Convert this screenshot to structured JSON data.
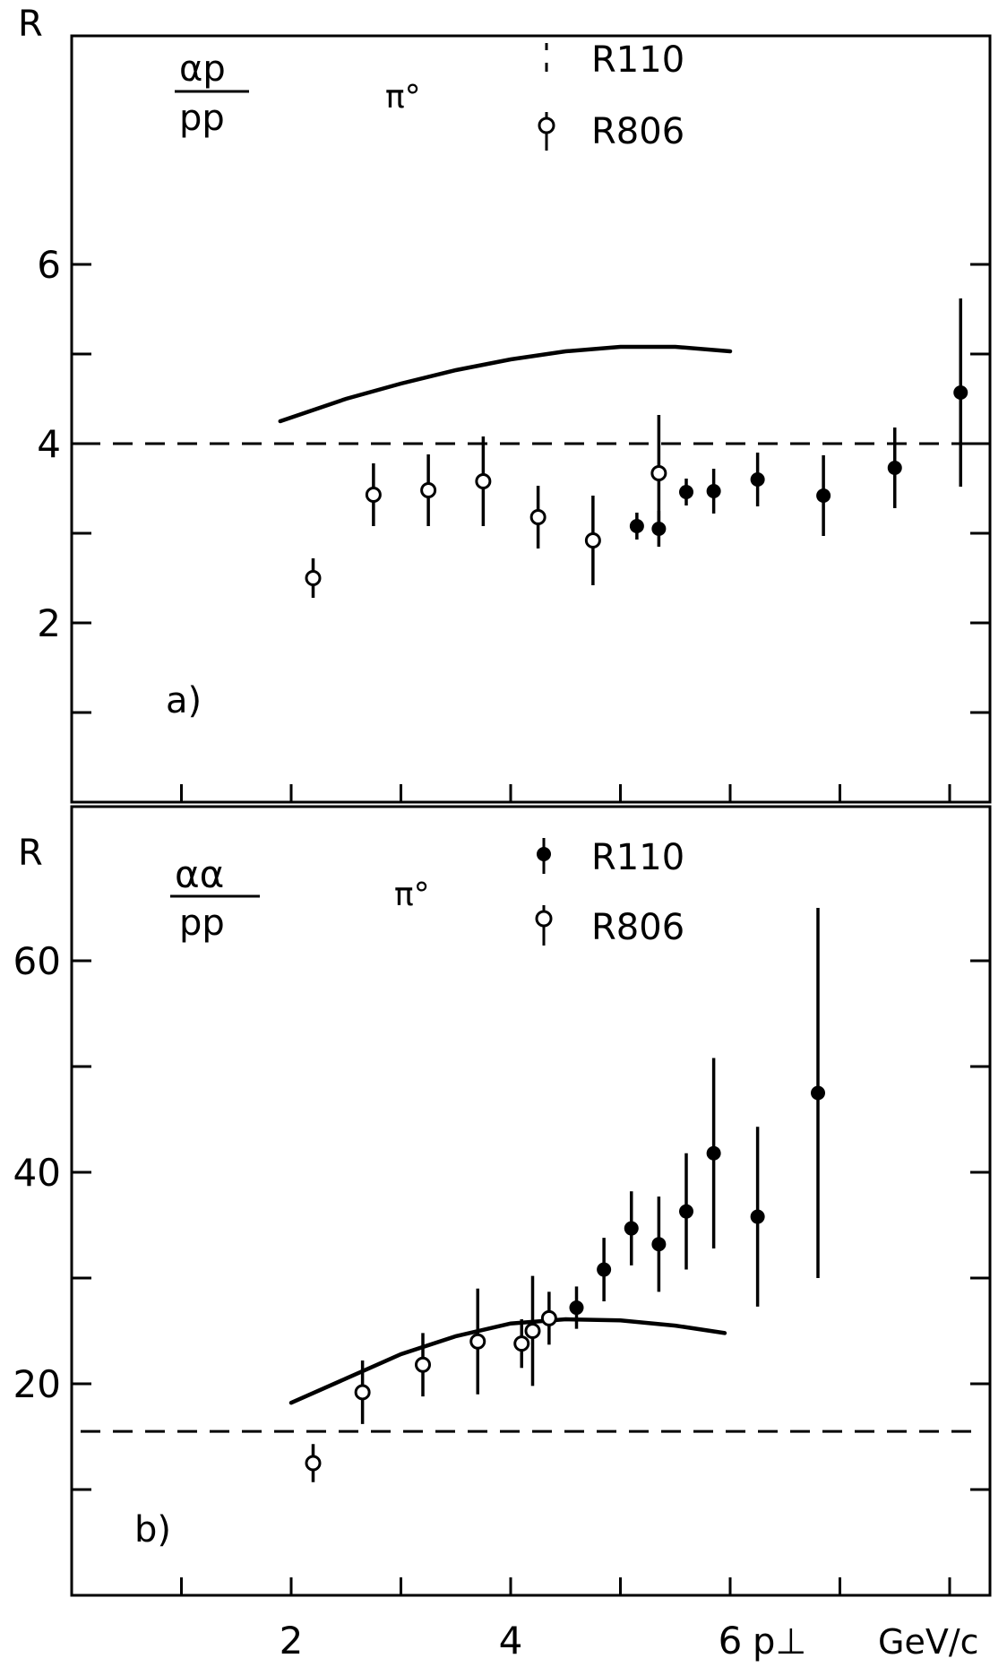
{
  "chart_data": [
    {
      "type": "scatter",
      "panel_label": "a)",
      "ratio_numerator": "αp",
      "ratio_denominator": "pp",
      "particle": "π°",
      "ylabel": "R",
      "xlabel": "p⊥",
      "x_unit": "GeV/c",
      "xlim": [
        0,
        8.5
      ],
      "ylim": [
        0,
        7.9
      ],
      "x_ticks": [
        2,
        4,
        6
      ],
      "y_ticks": [
        2,
        4,
        6
      ],
      "legend": [
        {
          "label": "R110",
          "marker": "filled"
        },
        {
          "label": "R806",
          "marker": "open"
        }
      ],
      "series": [
        {
          "name": "R806",
          "marker": "open",
          "x": [
            2.2,
            2.75,
            3.25,
            3.75,
            4.25,
            4.75,
            5.35
          ],
          "y": [
            2.5,
            3.43,
            3.48,
            3.58,
            3.18,
            2.92,
            3.67
          ],
          "err": [
            0.22,
            0.35,
            0.4,
            0.5,
            0.35,
            0.5,
            0.65
          ]
        },
        {
          "name": "R110",
          "marker": "filled",
          "x": [
            5.15,
            5.35,
            5.6,
            5.85,
            6.25,
            6.85,
            7.5,
            8.1
          ],
          "y": [
            3.08,
            3.05,
            3.46,
            3.47,
            3.6,
            3.42,
            3.73,
            4.57
          ],
          "err": [
            0.15,
            0.2,
            0.15,
            0.25,
            0.3,
            0.45,
            0.45,
            1.05
          ]
        }
      ],
      "curve": {
        "x": [
          1.9,
          2.5,
          3.0,
          3.5,
          4.0,
          4.5,
          5.0,
          5.5,
          6.0
        ],
        "y": [
          4.25,
          4.5,
          4.67,
          4.82,
          4.94,
          5.03,
          5.08,
          5.08,
          5.03
        ]
      },
      "reference_line": {
        "y": 4.0
      }
    },
    {
      "type": "scatter",
      "panel_label": "b)",
      "ratio_numerator": "αα",
      "ratio_denominator": "pp",
      "particle": "π°",
      "ylabel": "R",
      "xlabel": "p⊥",
      "x_unit": "GeV/c",
      "xlim": [
        0,
        8.5
      ],
      "ylim": [
        0,
        73
      ],
      "x_ticks": [
        2,
        4,
        6
      ],
      "y_ticks": [
        20,
        40,
        60
      ],
      "legend": [
        {
          "label": "R110",
          "marker": "filled"
        },
        {
          "label": "R806",
          "marker": "open"
        }
      ],
      "series": [
        {
          "name": "R806",
          "marker": "open",
          "x": [
            2.2,
            2.65,
            3.2,
            3.7,
            4.1,
            4.2,
            4.35
          ],
          "y": [
            12.5,
            19.2,
            21.8,
            24.0,
            23.8,
            25.0,
            26.2
          ],
          "err": [
            1.8,
            3.0,
            3.0,
            5.0,
            2.3,
            5.2,
            2.5
          ]
        },
        {
          "name": "R110",
          "marker": "filled",
          "x": [
            4.6,
            4.85,
            5.1,
            5.35,
            5.6,
            5.85,
            6.25,
            6.8
          ],
          "y": [
            27.2,
            30.8,
            34.7,
            33.2,
            36.3,
            41.8,
            35.8,
            47.5
          ],
          "err": [
            2.0,
            3.0,
            3.5,
            4.5,
            5.5,
            9.0,
            8.5,
            17.5
          ]
        }
      ],
      "curve": {
        "x": [
          2.0,
          2.5,
          3.0,
          3.5,
          4.0,
          4.5,
          5.0,
          5.5,
          5.95
        ],
        "y": [
          18.2,
          20.5,
          22.8,
          24.5,
          25.7,
          26.1,
          26.0,
          25.5,
          24.8
        ]
      },
      "reference_line": {
        "y": 15.5
      }
    }
  ]
}
